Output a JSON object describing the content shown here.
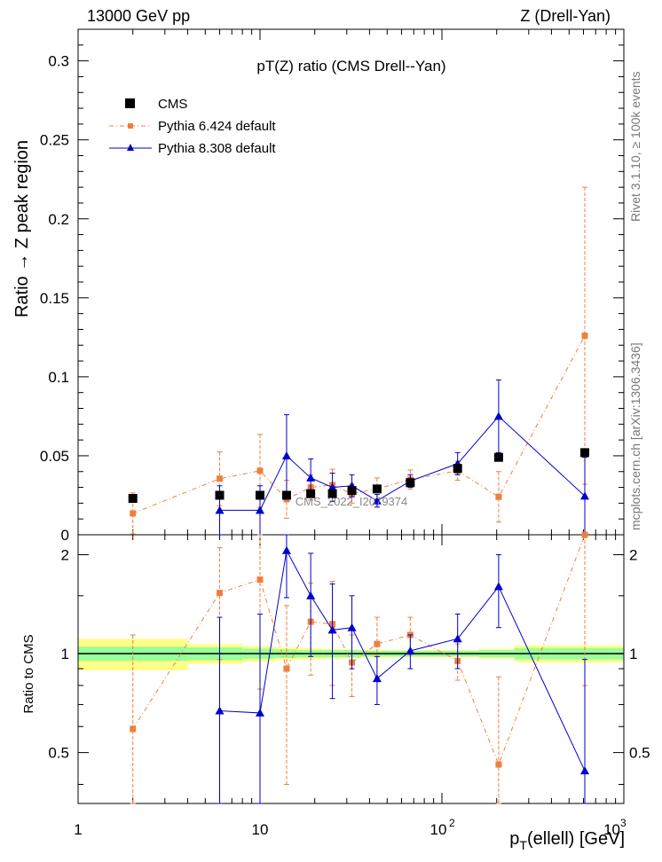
{
  "header": {
    "left": "13000 GeV pp",
    "right": "Z (Drell-Yan)"
  },
  "side_labels": {
    "upper": "Rivet 3.1.10, ≥ 100k events",
    "lower": "mcplots.cern.ch [arXiv:1306.3436]"
  },
  "colors": {
    "cms": "#000000",
    "py6": "#f07f3c",
    "py8": "#0000cc",
    "band_inner": "#99ff99",
    "band_outer": "#ffff88"
  },
  "chart_data": {
    "type": "scatter",
    "title": "pT(Z) ratio (CMS Drell--Yan)",
    "watermark": "CMS_2022_I2079374",
    "xlabel": "p_T(ellell) [GeV]",
    "xlabel_main": "p",
    "xlabel_sub": "T",
    "xlabel_rest": "(ellell) [GeV]",
    "ylabel": "Ratio → Z peak region",
    "ratio_ylabel": "Ratio to CMS",
    "xscale": "log",
    "xlim": [
      1,
      1000
    ],
    "ylim": [
      0,
      0.32
    ],
    "ratio_ylim": [
      0.35,
      2.3
    ],
    "x_tick_labels": [
      "1",
      "10",
      "10",
      "2",
      "10",
      "3"
    ],
    "y_ticks": [
      "0",
      "0.05",
      "0.1",
      "0.15",
      "0.2",
      "0.25",
      "0.3"
    ],
    "ratio_ticks": [
      "0.5",
      "1",
      "2"
    ],
    "legend": {
      "cms": "CMS",
      "py6": "Pythia 6.424 default",
      "py8": "Pythia 8.308 default"
    },
    "series": [
      {
        "name": "CMS",
        "x": [
          2,
          6,
          10,
          14,
          19,
          25,
          32,
          44,
          67,
          122,
          205,
          610
        ],
        "y": [
          0.023,
          0.025,
          0.025,
          0.025,
          0.026,
          0.026,
          0.028,
          0.029,
          0.033,
          0.042,
          0.049,
          0.052
        ],
        "err": [
          0.002,
          0.002,
          0.002,
          0.002,
          0.002,
          0.002,
          0.002,
          0.002,
          0.002,
          0.002,
          0.002,
          0.002
        ]
      },
      {
        "name": "Pythia 6.424 default",
        "x": [
          2,
          6,
          10,
          14,
          19,
          25,
          32,
          44,
          67,
          122,
          205,
          610
        ],
        "y": [
          0.0135,
          0.0355,
          0.0405,
          0.0225,
          0.03,
          0.0315,
          0.026,
          0.029,
          0.035,
          0.0405,
          0.024,
          0.126
        ],
        "err": [
          0.013,
          0.017,
          0.023,
          0.012,
          0.008,
          0.01,
          0.006,
          0.007,
          0.006,
          0.006,
          0.016,
          0.094
        ],
        "ratio": [
          0.59,
          1.53,
          1.68,
          0.9,
          1.25,
          1.23,
          0.94,
          1.07,
          1.14,
          0.95,
          0.46,
          2.3
        ],
        "ratio_err": [
          0.55,
          0.57,
          0.9,
          0.5,
          0.39,
          0.43,
          0.2,
          0.22,
          0.15,
          0.12,
          0.39,
          1.5
        ]
      },
      {
        "name": "Pythia 8.308 default",
        "x": [
          6,
          10,
          14,
          19,
          25,
          32,
          44,
          67,
          122,
          205,
          610
        ],
        "y": [
          0.0155,
          0.0155,
          0.05,
          0.036,
          0.03,
          0.031,
          0.0215,
          0.034,
          0.045,
          0.075,
          0.0245
        ],
        "err": [
          0.0155,
          0.0155,
          0.026,
          0.012,
          0.009,
          0.007,
          0.004,
          0.004,
          0.007,
          0.023,
          0.0245
        ],
        "ratio": [
          0.67,
          0.66,
          2.06,
          1.5,
          1.18,
          1.2,
          0.84,
          1.02,
          1.11,
          1.6,
          0.44
        ],
        "ratio_err": [
          0.62,
          0.66,
          0.58,
          0.52,
          0.45,
          0.3,
          0.14,
          0.12,
          0.21,
          0.4,
          0.52
        ]
      }
    ],
    "bands": {
      "edges": [
        1,
        4,
        8,
        12,
        16,
        22,
        28,
        36,
        52,
        85,
        160,
        250,
        400,
        1000
      ],
      "inner": [
        0.05,
        0.045,
        0.035,
        0.03,
        0.025,
        0.025,
        0.025,
        0.02,
        0.02,
        0.02,
        0.025,
        0.04,
        0.04
      ],
      "outer": [
        0.11,
        0.07,
        0.055,
        0.045,
        0.04,
        0.035,
        0.03,
        0.028,
        0.025,
        0.025,
        0.035,
        0.06,
        0.06
      ]
    }
  }
}
